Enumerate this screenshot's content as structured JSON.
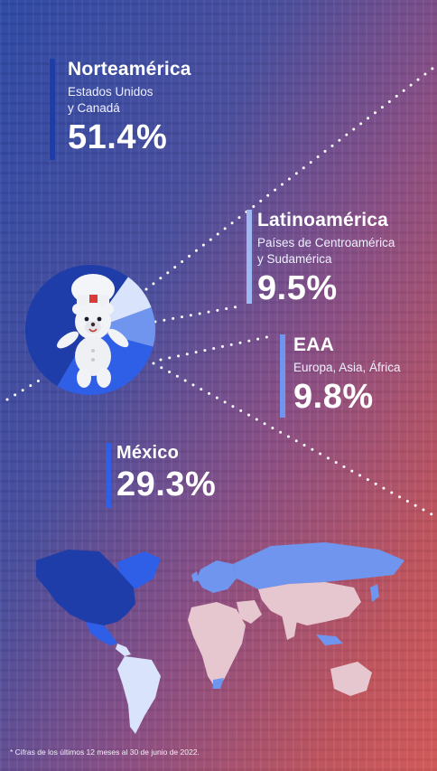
{
  "regions": {
    "norteamerica": {
      "title": "Norteamérica",
      "subtitle_line1": "Estados Unidos",
      "subtitle_line2": "y Canadá",
      "percent": "51.4%"
    },
    "latinoamerica": {
      "title": "Latinoamérica",
      "subtitle_line1": "Países de Centroamérica",
      "subtitle_line2": "y Sudamérica",
      "percent": "9.5%"
    },
    "eaa": {
      "title": "EAA",
      "subtitle_line1": "Europa, Asia, África",
      "percent": "9.8%"
    },
    "mexico": {
      "title": "México",
      "percent": "29.3%"
    }
  },
  "chart_data": {
    "type": "pie",
    "categories": [
      "Norteamérica",
      "México",
      "EAA",
      "Latinoamérica"
    ],
    "values": [
      51.4,
      29.3,
      9.8,
      9.5
    ]
  },
  "colors": {
    "norteamerica": "#1f3da8",
    "mexico": "#2f5fe6",
    "eaa": "#6f95ee",
    "latinoamerica": "#d9e3fb",
    "other_land": "#e6c7cf"
  },
  "mascot": {
    "icon": "bear-chef-mascot-icon"
  },
  "footnote": "* Cifras de los últimos 12 meses al 30 de junio de 2022."
}
